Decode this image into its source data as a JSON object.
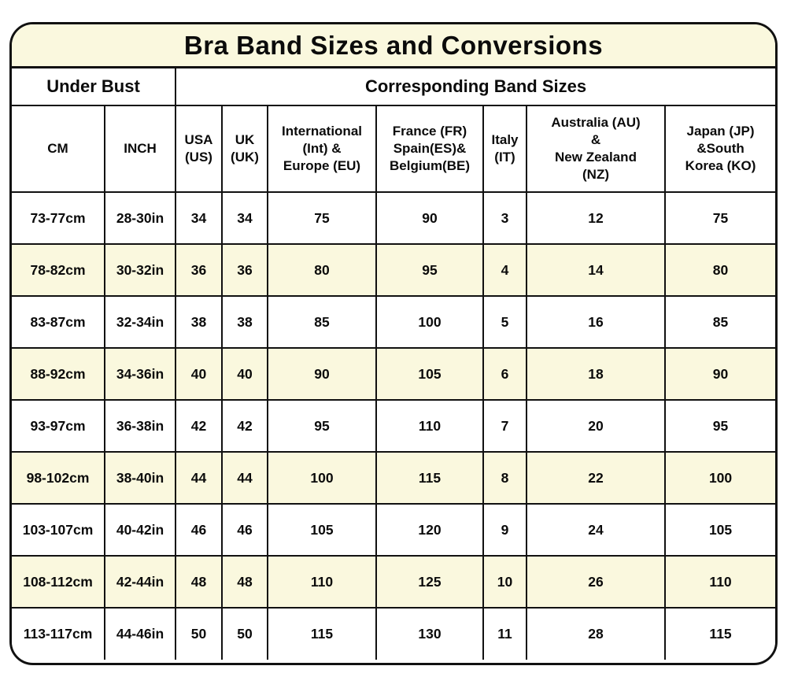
{
  "colors": {
    "stripe_cream": "#faf8de",
    "title_background": "#faf8de",
    "border": "#111111",
    "text": "#0b0b0b",
    "row_white": "#ffffff"
  },
  "chart_data": {
    "type": "table",
    "title": "Bra Band Sizes and Conversions",
    "group_headers": [
      {
        "label": "Under Bust",
        "colspan": 2
      },
      {
        "label": "Corresponding Band Sizes",
        "colspan": 7
      }
    ],
    "columns": [
      "CM",
      "INCH",
      "USA\n(US)",
      "UK\n(UK)",
      "International\n(Int) &\nEurope (EU)",
      "France (FR)\nSpain(ES)&\nBelgium(BE)",
      "Italy\n(IT)",
      "Australia (AU)\n&\nNew Zealand\n(NZ)",
      "Japan (JP)\n&South\nKorea (KO)"
    ],
    "rows": [
      [
        "73-77cm",
        "28-30in",
        "34",
        "34",
        "75",
        "90",
        "3",
        "12",
        "75"
      ],
      [
        "78-82cm",
        "30-32in",
        "36",
        "36",
        "80",
        "95",
        "4",
        "14",
        "80"
      ],
      [
        "83-87cm",
        "32-34in",
        "38",
        "38",
        "85",
        "100",
        "5",
        "16",
        "85"
      ],
      [
        "88-92cm",
        "34-36in",
        "40",
        "40",
        "90",
        "105",
        "6",
        "18",
        "90"
      ],
      [
        "93-97cm",
        "36-38in",
        "42",
        "42",
        "95",
        "110",
        "7",
        "20",
        "95"
      ],
      [
        "98-102cm",
        "38-40in",
        "44",
        "44",
        "100",
        "115",
        "8",
        "22",
        "100"
      ],
      [
        "103-107cm",
        "40-42in",
        "46",
        "46",
        "105",
        "120",
        "9",
        "24",
        "105"
      ],
      [
        "108-112cm",
        "42-44in",
        "48",
        "48",
        "110",
        "125",
        "10",
        "26",
        "110"
      ],
      [
        "113-117cm",
        "44-46in",
        "50",
        "50",
        "115",
        "130",
        "11",
        "28",
        "115"
      ]
    ],
    "layout": {
      "row_striping": "alternating white / cream starting with white",
      "all_text_bold": true,
      "grid": "full black gridlines, rounded outer frame"
    }
  }
}
